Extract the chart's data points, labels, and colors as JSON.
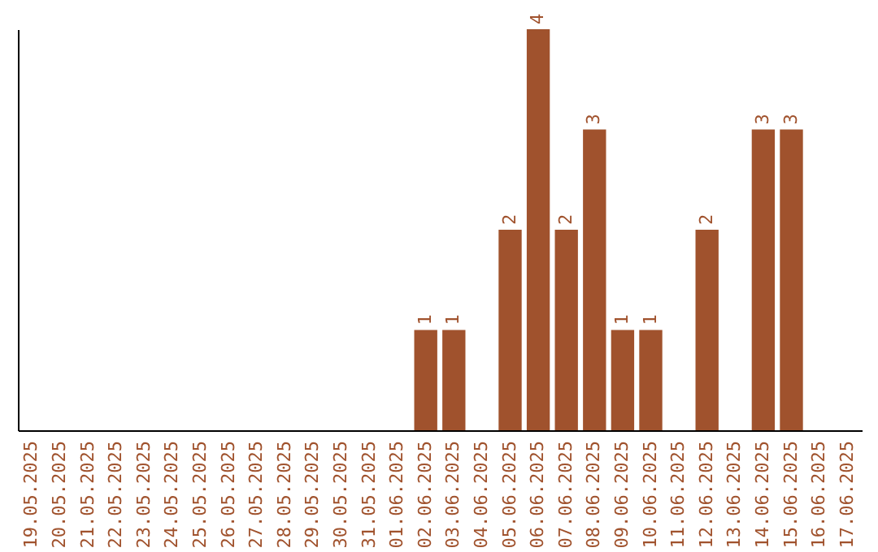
{
  "chart_data": {
    "type": "bar",
    "categories": [
      "19.05.2025",
      "20.05.2025",
      "21.05.2025",
      "22.05.2025",
      "23.05.2025",
      "24.05.2025",
      "25.05.2025",
      "26.05.2025",
      "27.05.2025",
      "28.05.2025",
      "29.05.2025",
      "30.05.2025",
      "31.05.2025",
      "01.06.2025",
      "02.06.2025",
      "03.06.2025",
      "04.06.2025",
      "05.06.2025",
      "06.06.2025",
      "07.06.2025",
      "08.06.2025",
      "09.06.2025",
      "10.06.2025",
      "11.06.2025",
      "12.06.2025",
      "13.06.2025",
      "14.06.2025",
      "15.06.2025",
      "16.06.2025",
      "17.06.2025"
    ],
    "values": [
      null,
      null,
      null,
      null,
      null,
      null,
      null,
      null,
      null,
      null,
      null,
      null,
      null,
      null,
      1,
      1,
      null,
      2,
      4,
      2,
      3,
      1,
      1,
      null,
      2,
      null,
      3,
      3,
      null,
      null
    ],
    "color": "#a0522d",
    "data_labels": true,
    "tick_labels": "x",
    "grid": false
  }
}
